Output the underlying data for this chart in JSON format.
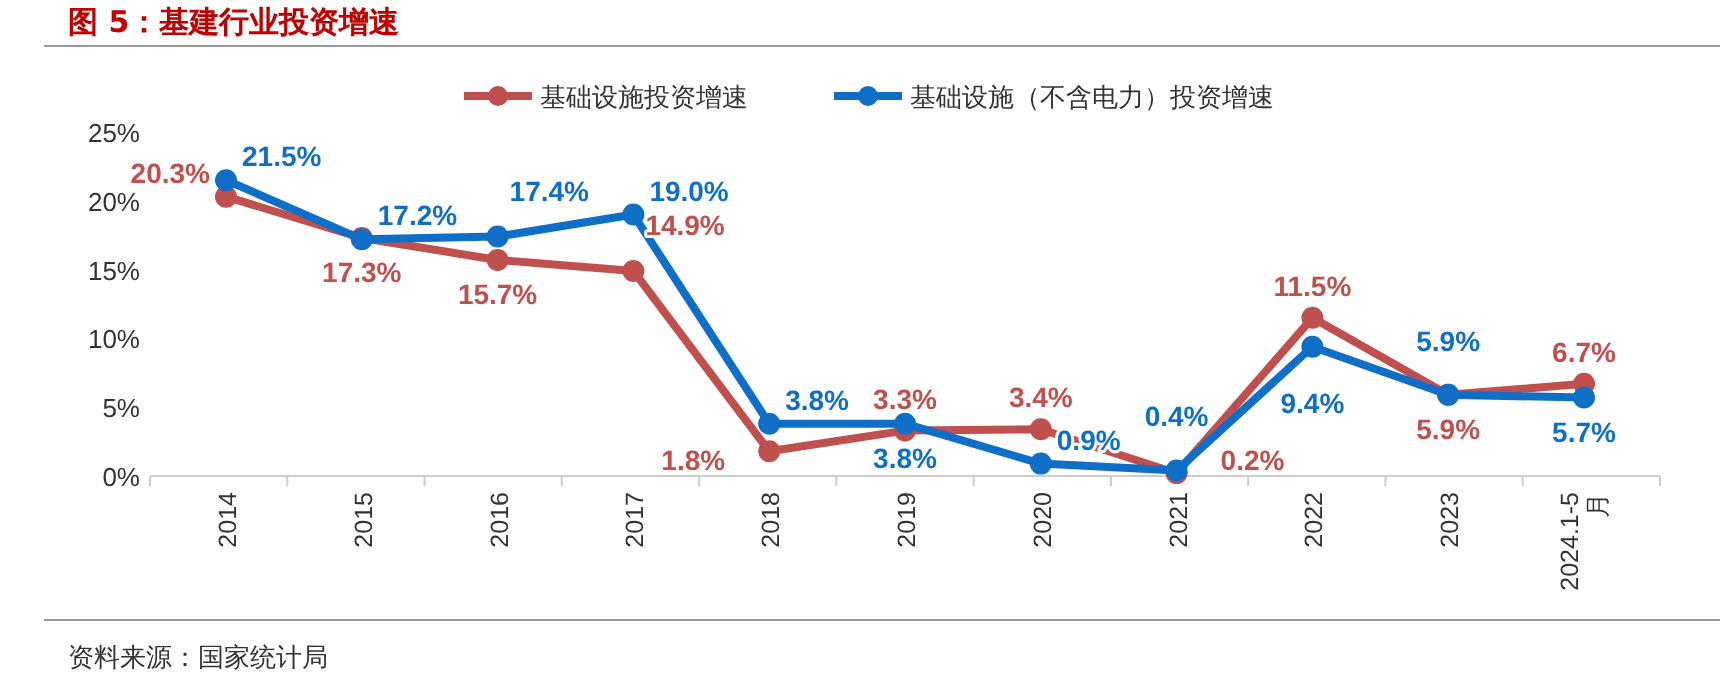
{
  "chart_data": {
    "type": "line",
    "title": "图 5：基建行业投资增速",
    "annotations": [
      "资料来源：国家统计局"
    ],
    "categories": [
      "2014",
      "2015",
      "2016",
      "2017",
      "2018",
      "2019",
      "2020",
      "2021",
      "2022",
      "2023",
      "2024.1-5月"
    ],
    "series": [
      {
        "name": "基础设施投资增速",
        "color": "#c0504d",
        "values": [
          20.3,
          17.3,
          15.7,
          14.9,
          1.8,
          3.3,
          3.4,
          0.2,
          11.5,
          5.9,
          6.7
        ],
        "value_labels": [
          "20.3%",
          "17.3%",
          "15.7%",
          "14.9%",
          "1.8%",
          "3.3%",
          "3.4%",
          "0.2%",
          "11.5%",
          "5.9%",
          "6.7%"
        ]
      },
      {
        "name": "基础设施（不含电力）投资增速",
        "color": "#0f6fc6",
        "values": [
          21.5,
          17.2,
          17.4,
          19.0,
          3.8,
          3.8,
          0.9,
          0.4,
          9.4,
          5.9,
          5.7
        ],
        "value_labels": [
          "21.5%",
          "17.2%",
          "17.4%",
          "19.0%",
          "3.8%",
          "3.8%",
          "0.9%",
          "0.4%",
          "9.4%",
          "5.9%",
          "5.7%"
        ]
      }
    ],
    "ylim": [
      0,
      25
    ],
    "yticks": [
      {
        "value": 0,
        "label": "0%"
      },
      {
        "value": 5,
        "label": "5%"
      },
      {
        "value": 10,
        "label": "10%"
      },
      {
        "value": 15,
        "label": "15%"
      },
      {
        "value": 20,
        "label": "20%"
      },
      {
        "value": 25,
        "label": "25%"
      }
    ],
    "legend": "top",
    "marker": "circle",
    "line_style": "solid"
  }
}
